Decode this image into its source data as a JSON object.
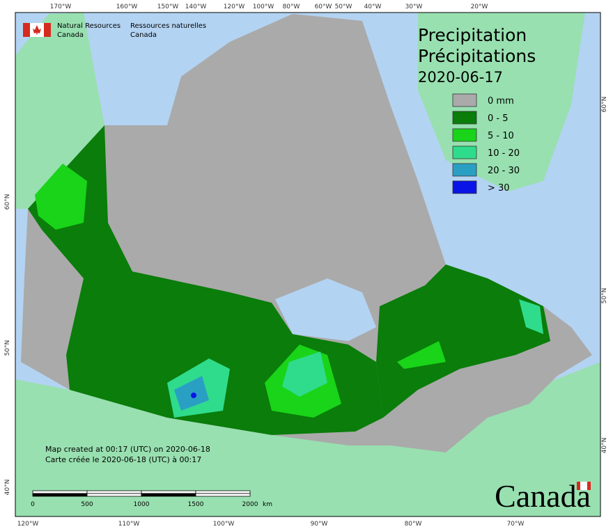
{
  "header": {
    "agency_en": "Natural Resources",
    "agency_en_2": "Canada",
    "agency_fr": "Ressources naturelles",
    "agency_fr_2": "Canada"
  },
  "title": {
    "en": "Precipitation",
    "fr": "Précipitations",
    "date": "2020-06-17"
  },
  "legend": [
    {
      "label": "0 mm",
      "color": "#aaaaaa"
    },
    {
      "label": "0 - 5",
      "color": "#0a7d0a"
    },
    {
      "label": "5 - 10",
      "color": "#19d419"
    },
    {
      "label": "10 - 20",
      "color": "#2fdc8c"
    },
    {
      "label": "20 - 30",
      "color": "#2a9fc4"
    },
    {
      "label": "> 30",
      "color": "#0a14e6"
    }
  ],
  "credits": [
    "Map created at 00:17 (UTC) on 2020-06-18",
    "Carte créée le 2020-06-18 (UTC) à 00:17"
  ],
  "scale_bar": {
    "ticks": [
      "0",
      "500",
      "1000",
      "1500",
      "2000"
    ],
    "unit": "km"
  },
  "graticule": {
    "top": [
      "170°W",
      "160°W",
      "150°W",
      "140°W",
      "120°W",
      "100°W",
      "80°W",
      "60°W",
      "50°W",
      "40°W",
      "30°W",
      "20°W"
    ],
    "bottom": [
      "120°W",
      "110°W",
      "100°W",
      "90°W",
      "80°W",
      "70°W"
    ],
    "left": [
      "60°N",
      "50°N",
      "40°N"
    ],
    "right": [
      "60°N",
      "50°N",
      "40°N"
    ]
  },
  "wordmark": "Canada"
}
